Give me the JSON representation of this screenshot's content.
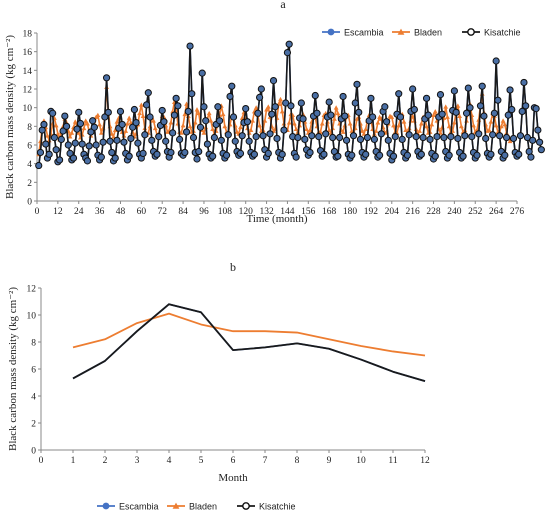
{
  "chart_data": [
    {
      "panel": "a",
      "type": "line",
      "title": "a",
      "xlabel": "Time (month)",
      "ylabel": "Black carbon mass density (kg cm⁻²)",
      "xlim": [
        0,
        276
      ],
      "ylim": [
        0,
        18
      ],
      "xticks": [
        0,
        12,
        24,
        36,
        48,
        60,
        72,
        84,
        96,
        108,
        120,
        132,
        144,
        156,
        168,
        180,
        192,
        204,
        216,
        228,
        240,
        252,
        264,
        276
      ],
      "yticks": [
        0,
        2,
        4,
        6,
        8,
        10,
        12,
        14,
        16,
        18
      ],
      "legend_position": "top-right",
      "x_start": 1,
      "series": [
        {
          "name": "Escambia",
          "color": "#4472C4",
          "marker": "circle",
          "values": [
            3.8,
            5.2,
            7.6,
            8.2,
            6.1,
            4.6,
            5.0,
            9.6,
            9.4,
            6.8,
            5.5,
            4.2,
            4.4,
            6.6,
            7.5,
            9.1,
            8.0,
            6.0,
            5.1,
            4.4,
            4.6,
            6.2,
            7.7,
            9.5,
            8.3,
            6.1,
            5.0,
            4.6,
            4.3,
            5.9,
            7.4,
            8.6,
            7.9,
            6.0,
            4.9,
            4.4,
            4.7,
            6.3,
            9.0,
            13.2,
            9.5,
            6.4,
            5.2,
            4.3,
            4.6,
            6.5,
            7.8,
            9.6,
            8.2,
            6.3,
            5.1,
            4.4,
            4.8,
            6.7,
            7.9,
            9.8,
            8.4,
            6.2,
            5.0,
            4.6,
            5.1,
            7.1,
            10.3,
            11.6,
            9.0,
            6.5,
            5.3,
            4.8,
            5.0,
            6.9,
            8.1,
            9.7,
            8.5,
            6.4,
            5.3,
            4.7,
            5.2,
            7.3,
            9.2,
            11.0,
            10.2,
            6.6,
            5.1,
            4.9,
            5.2,
            7.4,
            9.6,
            16.6,
            11.5,
            6.8,
            5.2,
            4.5,
            5.3,
            7.9,
            13.7,
            10.1,
            8.6,
            6.1,
            5.0,
            4.6,
            4.8,
            6.8,
            8.2,
            10.1,
            8.6,
            6.5,
            5.1,
            4.6,
            4.9,
            7.1,
            11.2,
            12.3,
            9.0,
            6.4,
            5.3,
            4.9,
            5.1,
            7.0,
            8.4,
            9.9,
            8.5,
            6.4,
            5.2,
            4.8,
            5.0,
            6.9,
            9.4,
            11.1,
            12.0,
            7.0,
            5.5,
            4.7,
            5.1,
            7.2,
            9.3,
            12.9,
            10.1,
            6.7,
            5.2,
            4.6,
            5.0,
            7.6,
            10.5,
            15.9,
            16.8,
            10.2,
            6.9,
            5.1,
            4.7,
            6.8,
            8.9,
            10.5,
            8.8,
            6.6,
            5.5,
            4.9,
            5.2,
            7.0,
            9.1,
            11.3,
            9.4,
            6.9,
            5.4,
            4.8,
            5.0,
            7.2,
            9.0,
            10.6,
            9.2,
            6.8,
            5.3,
            4.7,
            4.8,
            6.8,
            8.8,
            11.2,
            9.1,
            6.5,
            5.0,
            4.6,
            4.9,
            7.0,
            10.5,
            12.5,
            9.5,
            6.6,
            5.2,
            4.7,
            5.0,
            6.8,
            8.6,
            11.0,
            9.0,
            6.6,
            5.3,
            4.7,
            4.9,
            7.2,
            9.6,
            10.1,
            8.5,
            6.5,
            5.1,
            4.4,
            4.8,
            6.9,
            9.3,
            11.5,
            9.0,
            6.6,
            5.2,
            4.6,
            4.9,
            7.1,
            9.6,
            12.0,
            9.8,
            6.9,
            5.3,
            4.8,
            5.0,
            6.8,
            8.8,
            11.0,
            9.2,
            6.6,
            5.1,
            4.5,
            4.8,
            6.9,
            9.0,
            11.4,
            9.3,
            6.8,
            5.3,
            4.6,
            4.9,
            6.9,
            9.7,
            11.8,
            9.5,
            6.7,
            5.2,
            4.6,
            4.8,
            7.0,
            9.4,
            12.1,
            10.0,
            6.9,
            5.2,
            4.6,
            4.9,
            7.2,
            10.2,
            12.3,
            9.1,
            6.7,
            5.1,
            4.7,
            5.0,
            7.1,
            9.4,
            15.0,
            10.8,
            7.0,
            5.3,
            4.6,
            4.9,
            6.8,
            9.2,
            11.9,
            9.8,
            6.7,
            5.2,
            4.8,
            5.0,
            7.0,
            9.6,
            12.7,
            10.2,
            6.8,
            5.3,
            4.7,
            6.5,
            10.0,
            9.9,
            7.6,
            6.3,
            5.5
          ]
        },
        {
          "name": "Bladen",
          "color": "#ED7D31",
          "marker": "triangle",
          "values": [
            5.0,
            6.4,
            7.8,
            8.6,
            7.9,
            7.0,
            6.5,
            7.2,
            8.3,
            8.9,
            8.1,
            7.2,
            6.6,
            7.4,
            8.0,
            8.8,
            8.4,
            7.5,
            6.9,
            7.3,
            7.9,
            8.5,
            8.0,
            7.3,
            6.8,
            7.1,
            7.8,
            8.6,
            8.3,
            7.4,
            7.0,
            7.4,
            8.2,
            9.0,
            9.2,
            8.2,
            7.3,
            7.8,
            8.9,
            12.2,
            9.6,
            8.0,
            7.2,
            6.9,
            7.6,
            8.5,
            8.9,
            8.1,
            7.4,
            7.0,
            7.5,
            8.3,
            8.9,
            8.4,
            7.4,
            6.9,
            7.2,
            8.2,
            9.4,
            10.3,
            9.1,
            7.8,
            7.1,
            7.3,
            8.0,
            9.0,
            8.6,
            7.8,
            7.1,
            7.2,
            8.0,
            9.1,
            9.0,
            8.1,
            7.4,
            7.5,
            8.4,
            9.6,
            10.6,
            9.7,
            8.3,
            7.4,
            7.3,
            8.1,
            9.3,
            10.4,
            9.1,
            8.0,
            7.4,
            7.5,
            8.4,
            9.8,
            9.4,
            8.2,
            7.6,
            7.3,
            7.9,
            8.8,
            9.4,
            8.6,
            7.7,
            7.2,
            7.5,
            8.3,
            9.2,
            10.2,
            9.3,
            8.0,
            7.4,
            7.3,
            8.2,
            9.1,
            9.0,
            8.1,
            7.4,
            7.2,
            7.9,
            8.9,
            9.5,
            8.7,
            7.8,
            7.3,
            7.6,
            8.6,
            9.6,
            10.0,
            9.2,
            8.1,
            7.5,
            7.6,
            8.6,
            9.8,
            10.1,
            9.0,
            8.0,
            7.5,
            7.7,
            8.9,
            10.4,
            10.9,
            9.6,
            8.3,
            7.6,
            7.6,
            8.4,
            9.3,
            9.2,
            8.3,
            7.7,
            7.4,
            8.1,
            9.0,
            9.3,
            8.5,
            7.7,
            7.3,
            7.6,
            8.5,
            9.1,
            8.9,
            8.0,
            7.4,
            7.4,
            8.3,
            9.2,
            9.4,
            8.5,
            7.6,
            7.3,
            7.8,
            8.8,
            10.0,
            9.4,
            8.3,
            7.6,
            7.4,
            8.1,
            9.1,
            9.2,
            8.3,
            7.5,
            7.2,
            7.8,
            8.8,
            9.0,
            8.3,
            7.5,
            7.2,
            7.7,
            8.6,
            9.2,
            8.6,
            7.7,
            7.2,
            7.5,
            8.4,
            9.0,
            8.8,
            7.9,
            7.3,
            7.4,
            8.3,
            9.1,
            9.0,
            8.1,
            7.4,
            7.3,
            8.1,
            8.9,
            9.3,
            8.5,
            7.6,
            7.3,
            7.8,
            8.6,
            9.1,
            8.6,
            7.7,
            7.2,
            7.5,
            8.3,
            9.0,
            8.9,
            8.0,
            7.3,
            7.4,
            8.2,
            9.2,
            9.6,
            8.6,
            7.7,
            7.3,
            7.9,
            8.9,
            10.1,
            9.0,
            8.0,
            7.4,
            7.5,
            8.4,
            9.6,
            10.2,
            9.1,
            8.0,
            7.4,
            7.6,
            8.6,
            9.8,
            10.4,
            9.2,
            8.1,
            7.4,
            7.6,
            8.7,
            10.3,
            11.5,
            9.5,
            8.2,
            7.5,
            7.6,
            8.5,
            9.4,
            9.1,
            8.1,
            7.4,
            7.4,
            8.0,
            8.6,
            8.2,
            7.3,
            6.8,
            6.4
          ]
        },
        {
          "name": "Kisatchie",
          "color": "#1a1a1a",
          "marker": "circle",
          "values": [
            3.8,
            5.2,
            7.6,
            8.2,
            6.1,
            4.6,
            5.0,
            9.6,
            9.4,
            6.8,
            5.5,
            4.2,
            4.4,
            6.6,
            7.5,
            9.1,
            8.0,
            6.0,
            5.1,
            4.4,
            4.6,
            6.2,
            7.7,
            9.5,
            8.3,
            6.1,
            5.0,
            4.6,
            4.3,
            5.9,
            7.4,
            8.6,
            7.9,
            6.0,
            4.9,
            4.4,
            4.7,
            6.3,
            9.0,
            13.2,
            9.5,
            6.4,
            5.2,
            4.3,
            4.6,
            6.5,
            7.8,
            9.6,
            8.2,
            6.3,
            5.1,
            4.4,
            4.8,
            6.7,
            7.9,
            9.8,
            8.4,
            6.2,
            5.0,
            4.6,
            5.1,
            7.1,
            10.3,
            11.6,
            9.0,
            6.5,
            5.3,
            4.8,
            5.0,
            6.9,
            8.1,
            9.7,
            8.5,
            6.4,
            5.3,
            4.7,
            5.2,
            7.3,
            9.2,
            11.0,
            10.2,
            6.6,
            5.1,
            4.9,
            5.2,
            7.4,
            9.6,
            16.6,
            11.5,
            6.8,
            5.2,
            4.5,
            5.3,
            7.9,
            13.7,
            10.1,
            8.6,
            6.1,
            5.0,
            4.6,
            4.8,
            6.8,
            8.2,
            10.1,
            8.6,
            6.5,
            5.1,
            4.6,
            4.9,
            7.1,
            11.2,
            12.3,
            9.0,
            6.4,
            5.3,
            4.9,
            5.1,
            7.0,
            8.4,
            9.9,
            8.5,
            6.4,
            5.2,
            4.8,
            5.0,
            6.9,
            9.4,
            11.1,
            12.0,
            7.0,
            5.5,
            4.7,
            5.1,
            7.2,
            9.3,
            12.9,
            10.1,
            6.7,
            5.2,
            4.6,
            5.0,
            7.6,
            10.5,
            15.9,
            16.8,
            10.2,
            6.9,
            5.1,
            4.7,
            6.8,
            8.9,
            10.5,
            8.8,
            6.6,
            5.5,
            4.9,
            5.2,
            7.0,
            9.1,
            11.3,
            9.4,
            6.9,
            5.4,
            4.8,
            5.0,
            7.2,
            9.0,
            10.6,
            9.2,
            6.8,
            5.3,
            4.7,
            4.8,
            6.8,
            8.8,
            11.2,
            9.1,
            6.5,
            5.0,
            4.6,
            4.9,
            7.0,
            10.5,
            12.5,
            9.5,
            6.6,
            5.2,
            4.7,
            5.0,
            6.8,
            8.6,
            11.0,
            9.0,
            6.6,
            5.3,
            4.7,
            4.9,
            7.2,
            9.6,
            10.1,
            8.5,
            6.5,
            5.1,
            4.4,
            4.8,
            6.9,
            9.3,
            11.5,
            9.0,
            6.6,
            5.2,
            4.6,
            4.9,
            7.1,
            9.6,
            12.0,
            9.8,
            6.9,
            5.3,
            4.8,
            5.0,
            6.8,
            8.8,
            11.0,
            9.2,
            6.6,
            5.1,
            4.5,
            4.8,
            6.9,
            9.0,
            11.4,
            9.3,
            6.8,
            5.3,
            4.6,
            4.9,
            6.9,
            9.7,
            11.8,
            9.5,
            6.7,
            5.2,
            4.6,
            4.8,
            7.0,
            9.4,
            12.1,
            10.0,
            6.9,
            5.2,
            4.6,
            4.9,
            7.2,
            10.2,
            12.3,
            9.1,
            6.7,
            5.1,
            4.7,
            5.0,
            7.1,
            9.4,
            15.0,
            10.8,
            7.0,
            5.3,
            4.6,
            4.9,
            6.8,
            9.2,
            11.9,
            9.8,
            6.7,
            5.2,
            4.8,
            5.0,
            7.0,
            9.6,
            12.7,
            10.2,
            6.8,
            5.3,
            4.7,
            6.5,
            10.0,
            9.9,
            7.6,
            6.3,
            5.5
          ]
        }
      ]
    },
    {
      "panel": "b",
      "type": "line",
      "title": "b",
      "xlabel": "Month",
      "ylabel": "Black carbon mass density (kg cm⁻²)",
      "xlim": [
        0,
        12
      ],
      "ylim": [
        0,
        12
      ],
      "xticks": [
        0,
        1,
        2,
        3,
        4,
        5,
        6,
        7,
        8,
        9,
        10,
        11,
        12
      ],
      "yticks": [
        0,
        2,
        4,
        6,
        8,
        10,
        12
      ],
      "legend_position": "bottom",
      "x": [
        1,
        2,
        3,
        4,
        5,
        6,
        7,
        8,
        9,
        10,
        11,
        12
      ],
      "series": [
        {
          "name": "Escambia",
          "color": "#4472C4",
          "marker": "circle",
          "values": [
            5.3,
            6.6,
            8.8,
            10.8,
            10.2,
            7.4,
            7.6,
            7.9,
            7.5,
            6.7,
            5.8,
            5.1
          ]
        },
        {
          "name": "Bladen",
          "color": "#ED7D31",
          "marker": "triangle",
          "values": [
            7.6,
            8.2,
            9.4,
            10.1,
            9.3,
            8.8,
            8.8,
            8.7,
            8.2,
            7.7,
            7.3,
            7.0
          ]
        },
        {
          "name": "Kisatchie",
          "color": "#1a1a1a",
          "marker": "circle",
          "values": [
            5.3,
            6.6,
            8.8,
            10.8,
            10.2,
            7.4,
            7.6,
            7.9,
            7.5,
            6.7,
            5.8,
            5.1
          ]
        }
      ]
    }
  ]
}
